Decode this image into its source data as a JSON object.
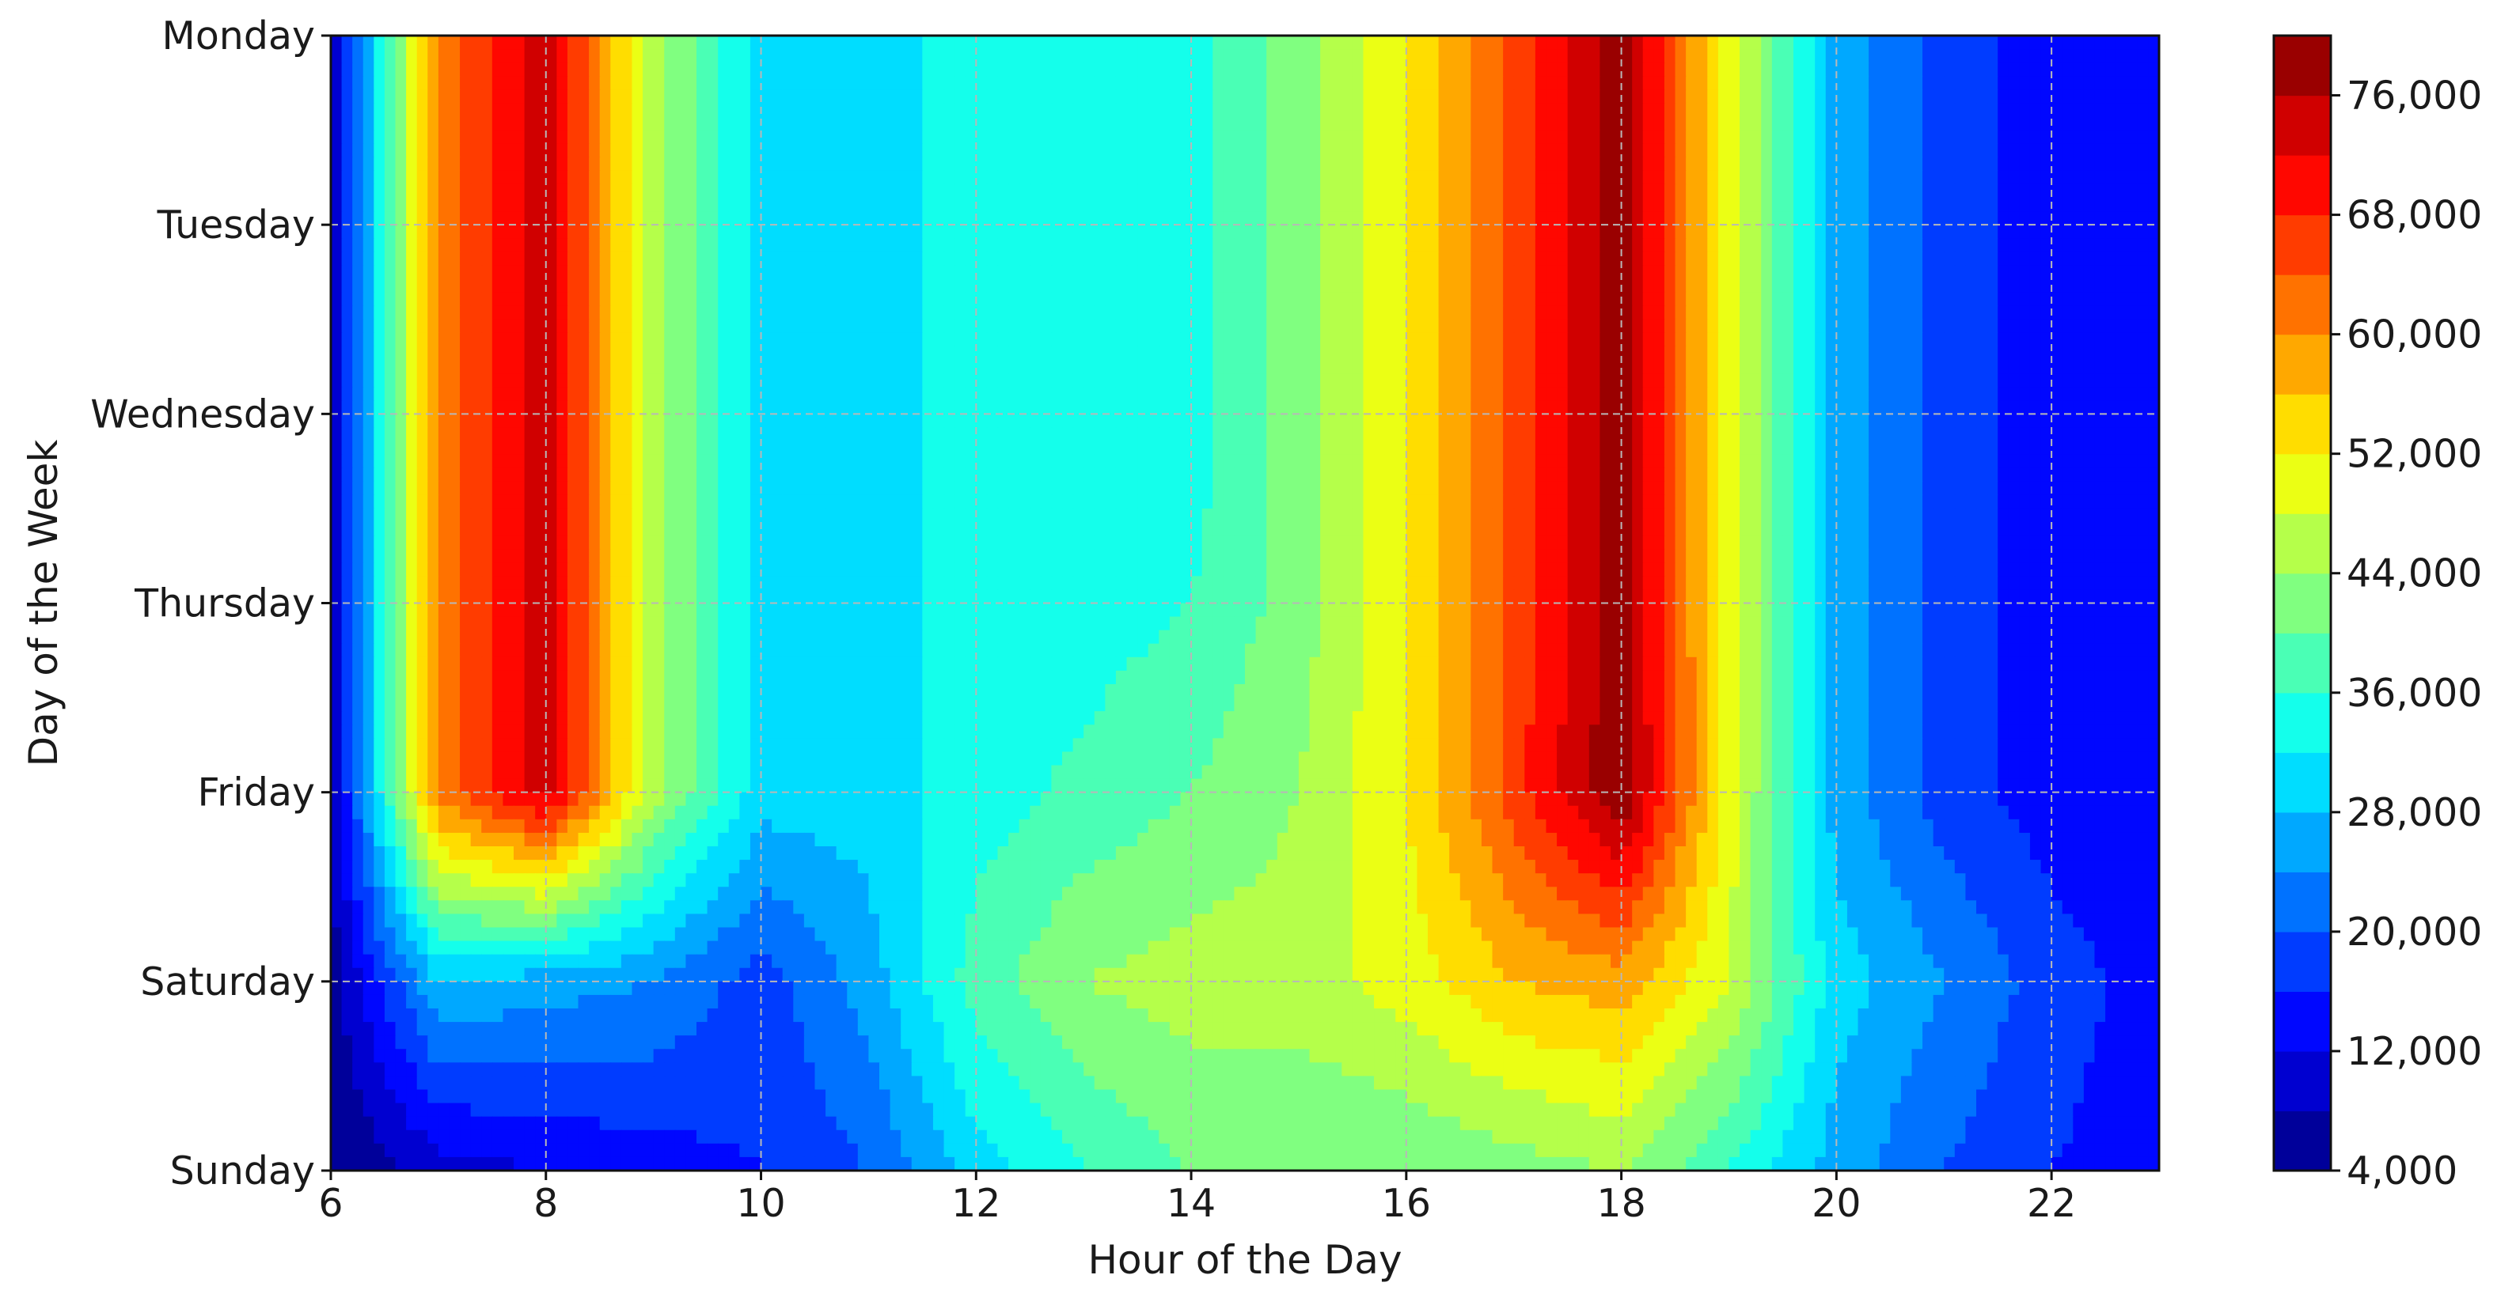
{
  "chart_data": {
    "type": "heatmap",
    "style": "filled-contour",
    "colormap": "jet",
    "xlabel": "Hour of the Day",
    "ylabel": "Day of the Week",
    "x": [
      6,
      7,
      8,
      9,
      10,
      11,
      12,
      13,
      14,
      15,
      16,
      17,
      18,
      19,
      20,
      21,
      22,
      23
    ],
    "x_ticks": [
      "6",
      "8",
      "10",
      "12",
      "14",
      "16",
      "18",
      "20",
      "22"
    ],
    "x_tick_values": [
      6,
      8,
      10,
      12,
      14,
      16,
      18,
      20,
      22
    ],
    "xlim": [
      6,
      23
    ],
    "y": [
      "Monday",
      "Tuesday",
      "Wednesday",
      "Thursday",
      "Friday",
      "Saturday",
      "Sunday"
    ],
    "values": [
      [
        8000,
        62000,
        74000,
        46000,
        30000,
        30000,
        34000,
        34000,
        34000,
        42000,
        52000,
        66000,
        78000,
        50000,
        26000,
        18000,
        14000,
        12000
      ],
      [
        8000,
        62000,
        74000,
        46000,
        30000,
        30000,
        34000,
        34000,
        34000,
        42000,
        52000,
        66000,
        78000,
        50000,
        26000,
        18000,
        14000,
        12000
      ],
      [
        8000,
        62000,
        74000,
        46000,
        30000,
        30000,
        34000,
        34000,
        34000,
        42000,
        52000,
        66000,
        78000,
        50000,
        26000,
        18000,
        14000,
        12000
      ],
      [
        8000,
        62000,
        74000,
        46000,
        30000,
        30000,
        34000,
        34000,
        36000,
        42000,
        52000,
        66000,
        78000,
        50000,
        26000,
        18000,
        14000,
        12000
      ],
      [
        8000,
        62000,
        74000,
        46000,
        30000,
        30000,
        34000,
        37000,
        40000,
        44000,
        52000,
        66000,
        80000,
        50000,
        26000,
        18000,
        14000,
        12000
      ],
      [
        6000,
        28000,
        26000,
        24000,
        18000,
        26000,
        38000,
        44000,
        46000,
        46000,
        50000,
        56000,
        58000,
        48000,
        30000,
        24000,
        18000,
        14000
      ],
      [
        4000,
        10000,
        12000,
        14000,
        16000,
        20000,
        30000,
        36000,
        40000,
        40000,
        40000,
        42000,
        44000,
        36000,
        26000,
        20000,
        16000,
        14000
      ]
    ],
    "levels": [
      4000,
      8000,
      12000,
      16000,
      20000,
      24000,
      28000,
      32000,
      36000,
      40000,
      44000,
      48000,
      52000,
      56000,
      60000,
      64000,
      68000,
      72000,
      76000,
      80000
    ],
    "colorbar_ticks": [
      "4,000",
      "12,000",
      "20,000",
      "28,000",
      "36,000",
      "44,000",
      "52,000",
      "60,000",
      "68,000",
      "76,000"
    ],
    "colorbar_tick_values": [
      4000,
      12000,
      20000,
      28000,
      36000,
      44000,
      52000,
      60000,
      68000,
      76000
    ],
    "grid": true,
    "grid_style": "dashed"
  }
}
